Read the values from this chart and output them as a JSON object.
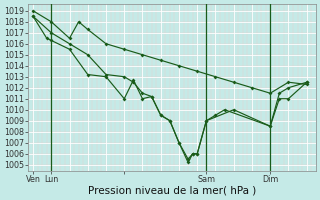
{
  "background_color": "#c5eae7",
  "line_color": "#1a5c1a",
  "ylim": [
    1004.4,
    1019.6
  ],
  "yticks": [
    1005,
    1006,
    1007,
    1008,
    1009,
    1010,
    1011,
    1012,
    1013,
    1014,
    1015,
    1016,
    1017,
    1018,
    1019
  ],
  "xlabel": "Pression niveau de la mer( hPa )",
  "xlabel_fontsize": 7.5,
  "tick_fontsize": 5.8,
  "line1_x": [
    0,
    4,
    8,
    10,
    12,
    16,
    20,
    24,
    28,
    32,
    36,
    40,
    44,
    48,
    52,
    56,
    60
  ],
  "line1_y": [
    1019.0,
    1018.0,
    1016.5,
    1018.0,
    1017.3,
    1016.0,
    1015.5,
    1015.0,
    1014.5,
    1014.0,
    1013.5,
    1013.0,
    1012.5,
    1012.0,
    1011.5,
    1012.5,
    1012.3
  ],
  "line2_x": [
    0,
    4,
    8,
    12,
    16,
    20,
    22,
    24,
    26,
    28,
    30,
    32,
    34,
    35,
    36,
    38,
    40,
    42,
    52,
    54,
    56,
    60
  ],
  "line2_y": [
    1018.5,
    1017.0,
    1016.0,
    1015.0,
    1013.2,
    1013.0,
    1012.5,
    1011.5,
    1011.2,
    1009.5,
    1009.0,
    1007.0,
    1005.5,
    1006.0,
    1006.0,
    1009.0,
    1009.5,
    1010.0,
    1008.5,
    1011.0,
    1011.0,
    1012.5
  ],
  "line3_x": [
    0,
    3,
    4,
    8,
    12,
    16,
    20,
    22,
    24,
    26,
    28,
    30,
    32,
    34,
    35,
    36,
    38,
    44,
    52,
    54,
    56,
    60
  ],
  "line3_y": [
    1018.5,
    1016.5,
    1016.3,
    1015.5,
    1013.2,
    1013.0,
    1011.0,
    1012.7,
    1011.0,
    1011.2,
    1009.5,
    1009.0,
    1007.0,
    1005.2,
    1006.0,
    1006.0,
    1009.0,
    1010.0,
    1008.5,
    1011.5,
    1012.0,
    1012.5
  ],
  "xtick_vals": [
    0,
    4,
    20,
    38,
    52
  ],
  "xtick_labels": [
    "Ven",
    "Lun",
    "",
    "Sam",
    "Dim"
  ],
  "vlines": [
    4,
    38,
    52
  ],
  "xlim": [
    -1,
    62
  ],
  "minor_grid_x_step": 2,
  "major_grid_x_step": 4
}
